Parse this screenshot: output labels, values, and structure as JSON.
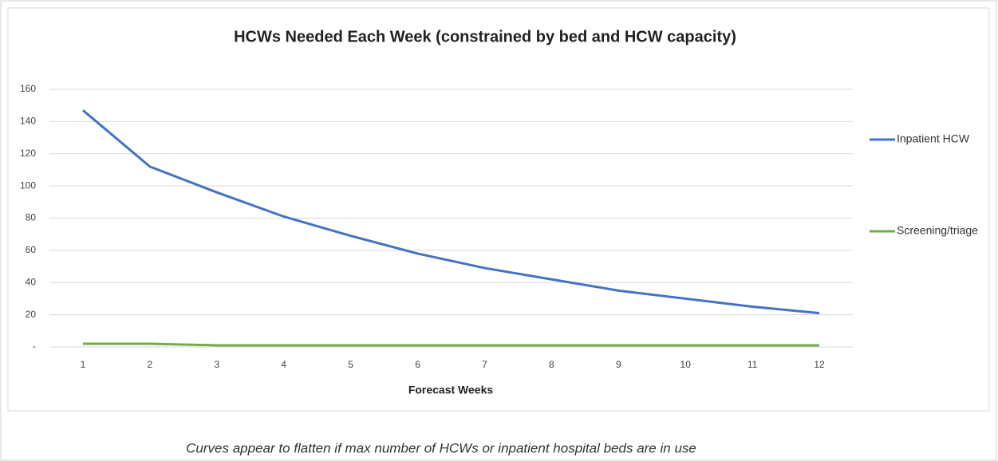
{
  "chart_data": {
    "type": "line",
    "title": "HCWs Needed Each Week (constrained by bed and HCW capacity)",
    "x_label": "Forecast Weeks",
    "annotation": "Curves appear to flatten if max number of HCWs or inpatient hospital beds are in use",
    "categories": [
      1,
      2,
      3,
      4,
      5,
      6,
      7,
      8,
      9,
      10,
      11,
      12
    ],
    "series": [
      {
        "name": "Inpatient HCW",
        "color": "#4472c4",
        "values": [
          147,
          112,
          96,
          81,
          69,
          58,
          49,
          42,
          35,
          30,
          25,
          21
        ]
      },
      {
        "name": "Screening/triage",
        "color": "#70ad47",
        "values": [
          2,
          2,
          1,
          1,
          1,
          1,
          1,
          1,
          1,
          1,
          1,
          1
        ]
      }
    ],
    "ylim": [
      0,
      160
    ],
    "yticks": [
      {
        "value": 0,
        "label": "-"
      },
      20,
      40,
      60,
      80,
      100,
      120,
      140,
      160
    ],
    "grid": true,
    "legend": "right"
  }
}
